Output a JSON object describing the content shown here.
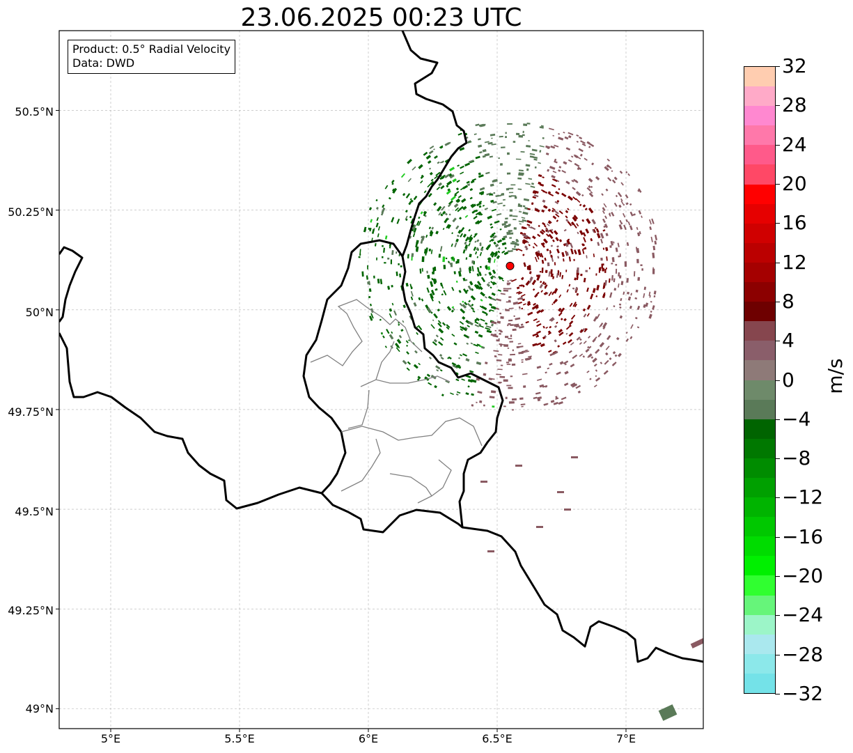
{
  "title": "23.06.2025 00:23 UTC",
  "info_box": {
    "product": "Product: 0.5° Radial Velocity",
    "data": "Data: DWD"
  },
  "axes": {
    "lon_ticks": [
      "5°E",
      "5.5°E",
      "6°E",
      "6.5°E",
      "7°E"
    ],
    "lat_ticks": [
      "50.5°N",
      "50.25°N",
      "50°N",
      "49.75°N",
      "49.5°N",
      "49.25°N",
      "49°N"
    ],
    "lon_range": [
      4.8,
      7.3
    ],
    "lat_range": [
      48.95,
      50.7
    ],
    "grid": true
  },
  "radar_site": {
    "lon": 6.55,
    "lat": 50.11,
    "color": "#ff0000"
  },
  "colorbar": {
    "unit": "m/s",
    "range": [
      -32,
      32
    ],
    "tick_labels": [
      "32",
      "28",
      "24",
      "20",
      "16",
      "12",
      "8",
      "4",
      "0",
      "−4",
      "−8",
      "−12",
      "−16",
      "−20",
      "−24",
      "−28",
      "−32"
    ],
    "colors_top_to_bottom": [
      "#ffcdb0",
      "#ffaac8",
      "#ff88d0",
      "#ff78aa",
      "#ff5a8a",
      "#ff4866",
      "#ff0000",
      "#e60000",
      "#d00000",
      "#bb0000",
      "#a50000",
      "#8c0000",
      "#6e0000",
      "#86464e",
      "#8a5e6a",
      "#8e7a78",
      "#6e8a6a",
      "#5a7a58",
      "#006400",
      "#007800",
      "#008c00",
      "#00a000",
      "#00b400",
      "#00c800",
      "#00dc00",
      "#00f000",
      "#30ff30",
      "#66f57a",
      "#9cf5c8",
      "#aae8ee",
      "#8ce8ea",
      "#74e2e8"
    ]
  },
  "colors": {
    "outbound_dark": "#7a0000",
    "outbound_light": "#8a5a62",
    "inbound_dark": "#006400",
    "inbound_light": "#5a7a58",
    "inbound_bright": "#22cc22",
    "border": "#000000",
    "admin_border": "#808080"
  }
}
